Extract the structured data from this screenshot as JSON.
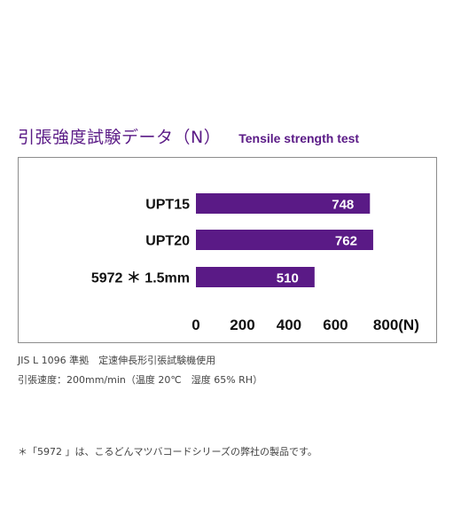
{
  "title_jp": "引張強度試験データ（N）",
  "title_en": "Tensile strength test",
  "notes": {
    "line1": "JIS L 1096 準拠　定速伸長形引張試験機使用",
    "line2": "引張速度：200mm/min（温度 20℃　湿度 65% RH）",
    "footnote": "＊「5972 」は、こるどんマツバコードシリーズの弊社の製品です。"
  },
  "colors": {
    "bar": "#5a1a86",
    "title": "#5a1a86"
  },
  "chart_data": {
    "type": "bar",
    "orientation": "horizontal",
    "categories": [
      "UPT15",
      "UPT20",
      "5972 ＊ 1.5mm"
    ],
    "values": [
      748,
      762,
      510
    ],
    "value_labels": [
      "748",
      "762",
      "510"
    ],
    "x_ticks": [
      "0",
      "200",
      "400",
      "600",
      "800(N)"
    ],
    "tick_values": [
      0,
      200,
      400,
      600,
      800
    ],
    "xlim": [
      0,
      800
    ],
    "grid": false
  }
}
